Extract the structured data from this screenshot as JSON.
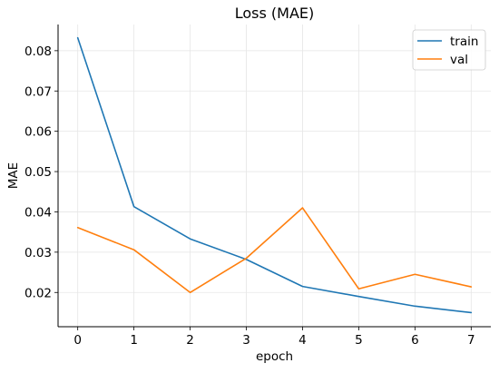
{
  "chart_data": {
    "type": "line",
    "title": "Loss (MAE)",
    "xlabel": "epoch",
    "ylabel": "MAE",
    "x": [
      0,
      1,
      2,
      3,
      4,
      5,
      6,
      7
    ],
    "xlim": [
      -0.35,
      7.35
    ],
    "ylim": [
      0.0115,
      0.0865
    ],
    "xticks": [
      0,
      1,
      2,
      3,
      4,
      5,
      6,
      7
    ],
    "yticks": [
      0.02,
      0.03,
      0.04,
      0.05,
      0.06,
      0.07,
      0.08
    ],
    "ytick_labels": [
      "0.02",
      "0.03",
      "0.04",
      "0.05",
      "0.06",
      "0.07",
      "0.08"
    ],
    "grid": true,
    "legend_position": "top-right",
    "series": [
      {
        "name": "train",
        "color": "#1f77b4",
        "values": [
          0.0832,
          0.0413,
          0.0333,
          0.0282,
          0.0215,
          0.019,
          0.0166,
          0.015
        ]
      },
      {
        "name": "val",
        "color": "#ff7f0e",
        "values": [
          0.0361,
          0.0306,
          0.02,
          0.0285,
          0.041,
          0.0209,
          0.0245,
          0.0214
        ]
      }
    ]
  }
}
